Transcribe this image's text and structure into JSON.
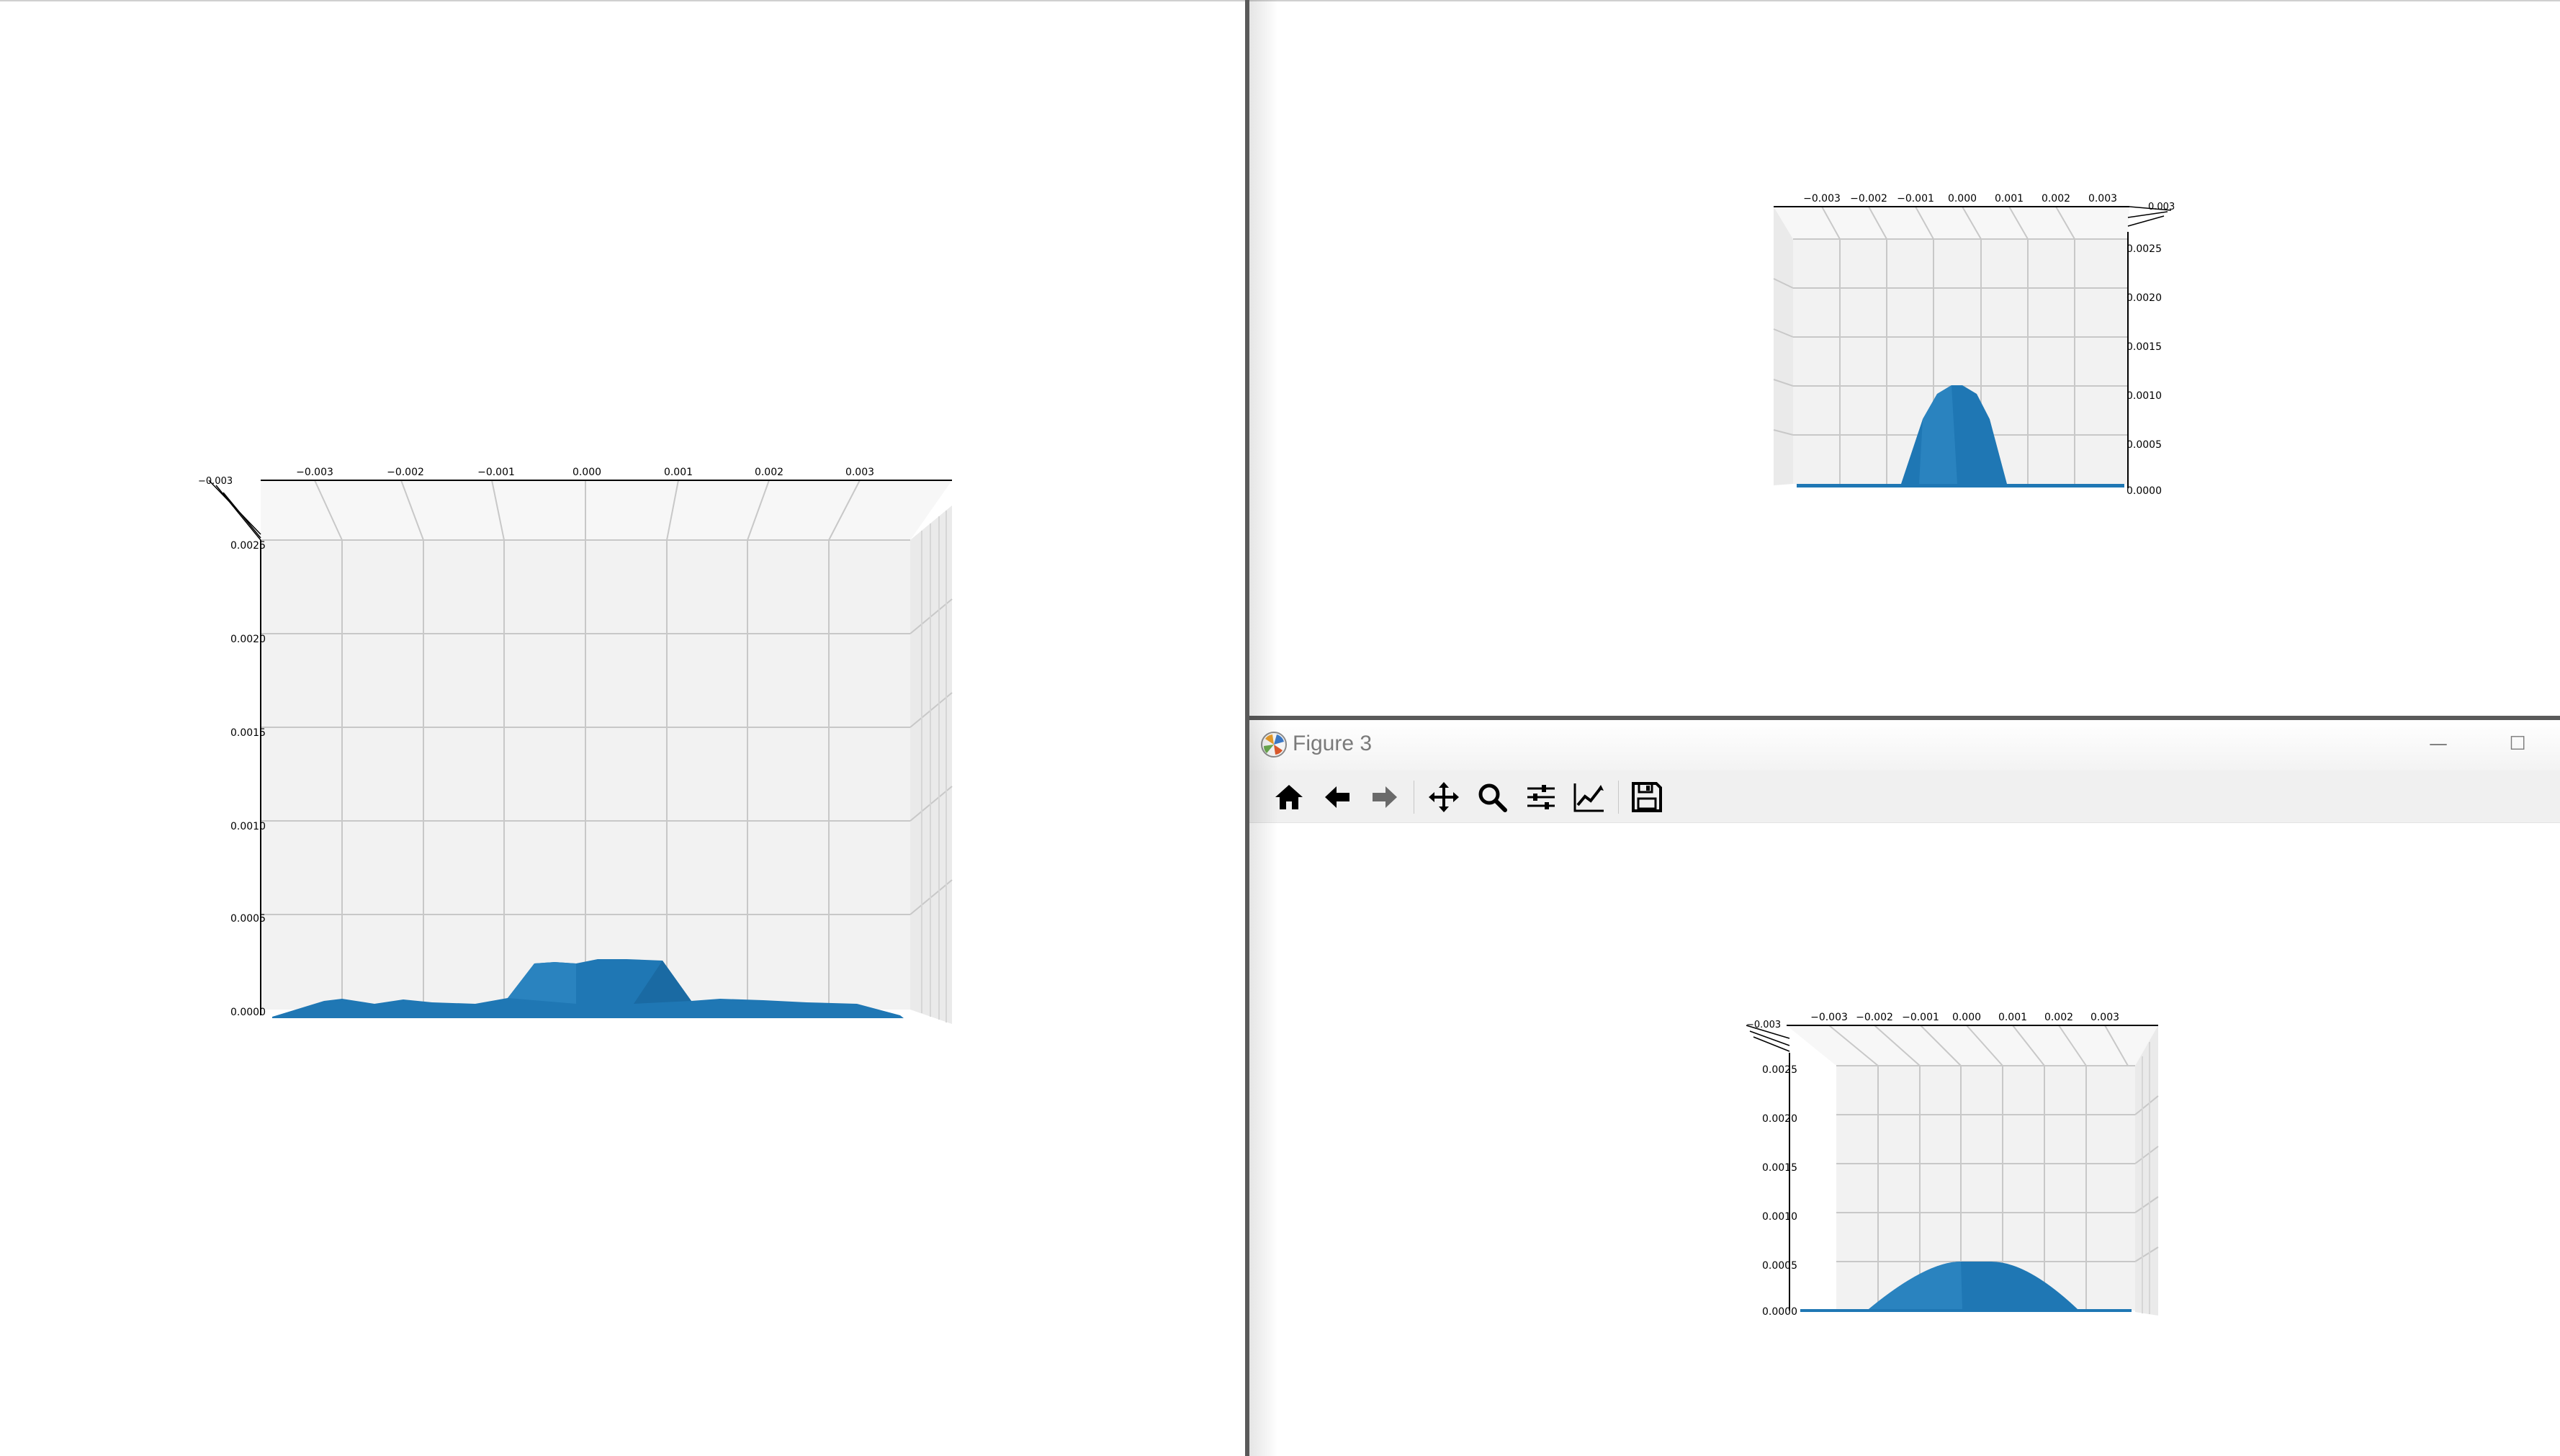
{
  "windows": [
    {
      "id": "figure-left",
      "plot": {
        "x_ticks": [
          "−0.003",
          "−0.002",
          "−0.001",
          "0.000",
          "0.001",
          "0.002",
          "0.003"
        ],
        "z_ticks": [
          "0.0025",
          "0.0020",
          "0.0015",
          "0.0010",
          "0.0005",
          "0.0000"
        ],
        "y_tick_top": "−0.003"
      }
    },
    {
      "id": "figure-right-top",
      "plot": {
        "x_ticks": [
          "−0.003",
          "−0.002",
          "−0.001",
          "0.000",
          "0.001",
          "0.002",
          "0.003"
        ],
        "z_ticks": [
          "0.0025",
          "0.0020",
          "0.0015",
          "0.0010",
          "0.0005",
          "0.0000"
        ],
        "y_tick_top": "0.003"
      }
    },
    {
      "id": "figure-3",
      "title": "Figure 3",
      "buttons": {
        "minimize": "—",
        "maximize": "☐"
      },
      "toolbar": [
        "home-icon",
        "back-icon",
        "forward-icon",
        "pan-icon",
        "zoom-icon",
        "configure-subplots-icon",
        "edit-axis-icon",
        "save-icon"
      ],
      "plot": {
        "x_ticks": [
          "−0.003",
          "−0.002",
          "−0.001",
          "0.000",
          "0.001",
          "0.002",
          "0.003"
        ],
        "z_ticks": [
          "0.0025",
          "0.0020",
          "0.0015",
          "0.0010",
          "0.0005",
          "0.0000"
        ],
        "y_tick_top": "−0.003"
      }
    }
  ],
  "colors": {
    "surface": "#1f77b4",
    "pane": "#f2f2f2",
    "grid": "#c8c8c8"
  }
}
